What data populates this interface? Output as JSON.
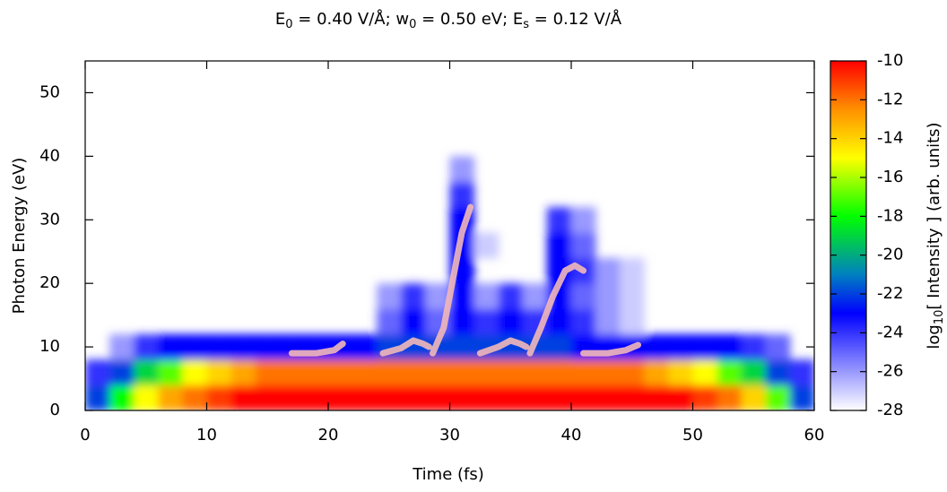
{
  "chart_data": {
    "type": "heatmap",
    "title_parts": [
      "E",
      "0",
      " = 0.40 V/Å; w",
      "0",
      " = 0.50 eV; E",
      "s",
      " = 0.12 V/Å"
    ],
    "x_label": "Time (fs)",
    "y_label": "Photon Energy (eV)",
    "colorbar_label_parts": [
      "log",
      "10",
      "[ Intensity ] (arb. units)"
    ],
    "xlim": [
      0,
      60
    ],
    "xticks": [
      0,
      10,
      20,
      30,
      40,
      50,
      60
    ],
    "ylim": [
      0,
      55
    ],
    "yticks": [
      0,
      10,
      20,
      30,
      40,
      50
    ],
    "zlim": [
      -28,
      -10
    ],
    "zticks": [
      -10,
      -12,
      -14,
      -16,
      -18,
      -20,
      -22,
      -24,
      -26,
      -28
    ],
    "colormap": [
      {
        "value": -10,
        "color": "#ff0000"
      },
      {
        "value": -12.5,
        "color": "#ff9000"
      },
      {
        "value": -15,
        "color": "#ffff00"
      },
      {
        "value": -18,
        "color": "#00ff00"
      },
      {
        "value": -21,
        "color": "#0080c0"
      },
      {
        "value": -23,
        "color": "#0000ff"
      },
      {
        "value": -28,
        "color": "#ffffff"
      }
    ],
    "x": [
      1,
      3,
      5,
      7,
      9,
      11,
      13,
      15,
      17,
      19,
      21,
      23,
      25,
      27,
      29,
      31,
      33,
      35,
      37,
      39,
      41,
      43,
      45,
      47,
      49,
      51,
      53,
      55,
      57,
      59
    ],
    "y": [
      2,
      6,
      10,
      14,
      18,
      22,
      26,
      30,
      34,
      38
    ],
    "z": [
      [
        -22,
        -18,
        -15,
        -13,
        -12,
        -11,
        -10,
        -10,
        -10,
        -10,
        -10,
        -10,
        -10,
        -10,
        -10,
        -10,
        -10,
        -10,
        -10,
        -10,
        -10,
        -10,
        -10,
        -10,
        -10,
        -11,
        -12,
        -14,
        -17,
        -22
      ],
      [
        -24,
        -22,
        -19,
        -17,
        -15,
        -14,
        -13,
        -12,
        -12,
        -12,
        -12,
        -12,
        -12,
        -12,
        -12,
        -12,
        -12,
        -12,
        -12,
        -12,
        -12,
        -12,
        -12,
        -13,
        -14,
        -15,
        -17,
        -19,
        -22,
        -24
      ],
      [
        null,
        -26,
        -24,
        -23,
        -23,
        -23,
        -23,
        -23,
        -23,
        -23,
        -23,
        -23,
        -22,
        -22,
        -22,
        -22,
        -22,
        -22,
        -22,
        -22,
        -23,
        -23,
        -23,
        -23,
        -23,
        -23,
        -23,
        -24,
        -25,
        null
      ],
      [
        null,
        null,
        null,
        null,
        null,
        null,
        null,
        null,
        null,
        null,
        null,
        null,
        -25,
        -23,
        -25,
        -23,
        -24,
        -23,
        -24,
        -23,
        -24,
        -26,
        -27,
        null,
        null,
        null,
        null,
        null,
        null,
        null
      ],
      [
        null,
        null,
        null,
        null,
        null,
        null,
        null,
        null,
        null,
        null,
        null,
        null,
        -26,
        -24,
        -26,
        -23,
        -26,
        -24,
        -26,
        -23,
        -25,
        -26,
        -27,
        null,
        null,
        null,
        null,
        null,
        null,
        null
      ],
      [
        null,
        null,
        null,
        null,
        null,
        null,
        null,
        null,
        null,
        null,
        null,
        null,
        null,
        null,
        null,
        -23,
        null,
        null,
        null,
        -23,
        -24,
        -26,
        -27,
        null,
        null,
        null,
        null,
        null,
        null,
        null
      ],
      [
        null,
        null,
        null,
        null,
        null,
        null,
        null,
        null,
        null,
        null,
        null,
        null,
        null,
        null,
        null,
        -23,
        -27,
        null,
        null,
        -23,
        -25,
        null,
        null,
        null,
        null,
        null,
        null,
        null,
        null,
        null
      ],
      [
        null,
        null,
        null,
        null,
        null,
        null,
        null,
        null,
        null,
        null,
        null,
        null,
        null,
        null,
        null,
        -23,
        null,
        null,
        null,
        -24,
        -26,
        null,
        null,
        null,
        null,
        null,
        null,
        null,
        null,
        null
      ],
      [
        null,
        null,
        null,
        null,
        null,
        null,
        null,
        null,
        null,
        null,
        null,
        null,
        null,
        null,
        null,
        -24,
        null,
        null,
        null,
        null,
        null,
        null,
        null,
        null,
        null,
        null,
        null,
        null,
        null,
        null
      ],
      [
        null,
        null,
        null,
        null,
        null,
        null,
        null,
        null,
        null,
        null,
        null,
        null,
        null,
        null,
        null,
        -26,
        null,
        null,
        null,
        null,
        null,
        null,
        null,
        null,
        null,
        null,
        null,
        null,
        null,
        null
      ]
    ],
    "trajectory": {
      "color": "#f2b8b8",
      "x": [
        17,
        19,
        20.5,
        21.2,
        null,
        24.5,
        26,
        27,
        27.8,
        28.3,
        null,
        28.6,
        29.5,
        30.2,
        31,
        31.7,
        null,
        32.5,
        34,
        35,
        35.8,
        36.3,
        null,
        36.6,
        37.5,
        38.5,
        39.5,
        40.3,
        41,
        null,
        41,
        43,
        44.5,
        45.5
      ],
      "y": [
        9,
        9,
        9.5,
        10.5,
        null,
        9,
        9.8,
        11,
        10.5,
        10,
        null,
        9,
        13,
        20,
        28,
        32,
        null,
        9,
        10,
        11,
        10.5,
        10,
        null,
        9,
        13,
        18,
        22,
        22.8,
        22,
        null,
        9,
        9,
        9.5,
        10.3
      ]
    }
  }
}
